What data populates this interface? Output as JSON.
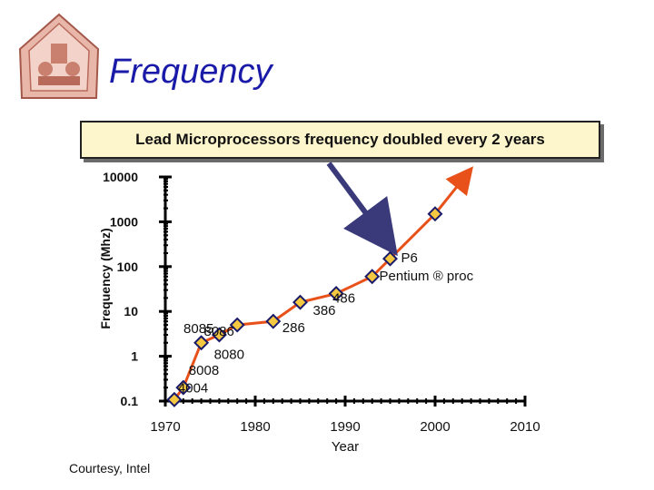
{
  "slide": {
    "title": "Frequency",
    "banner": "Lead Microprocessors frequency doubled every 2 years",
    "credit": "Courtesy, Intel"
  },
  "colors": {
    "title": "#1a1aa8",
    "banner_bg": "#fdf5cc",
    "line": "#e8511a",
    "marker": "#f5c842",
    "marker_border": "#1a1a6b",
    "arrow": "#3a3a7a"
  },
  "chart_data": {
    "type": "line",
    "xlabel": "Year",
    "ylabel": "Frequency (Mhz)",
    "xlim": [
      1970,
      2010
    ],
    "ylim": [
      0.1,
      10000
    ],
    "yscale": "log",
    "x_ticks": [
      "1970",
      "1980",
      "1990",
      "2000",
      "2010"
    ],
    "y_ticks": [
      "10000",
      "1000",
      "100",
      "10",
      "1",
      "0.1"
    ],
    "series": [
      {
        "x": [
          1971,
          1972,
          1974,
          1976,
          1978,
          1982,
          1985,
          1989,
          1993,
          1995,
          2000
        ],
        "values": [
          0.108,
          0.2,
          2,
          3,
          5,
          6,
          16,
          25,
          60,
          150,
          1500
        ]
      }
    ],
    "trend_extension": {
      "x": [
        2000,
        2003.3
      ],
      "values": [
        1500,
        10000
      ]
    },
    "annotations": [
      {
        "text": "4004",
        "x": 1971
      },
      {
        "text": "8008",
        "x": 1972
      },
      {
        "text": "8080",
        "x": 1974
      },
      {
        "text": "8085",
        "x": 1976
      },
      {
        "text": "8086",
        "x": 1978
      },
      {
        "text": "286",
        "x": 1982
      },
      {
        "text": "386",
        "x": 1985
      },
      {
        "text": "486",
        "x": 1989
      },
      {
        "text": "P6",
        "x": 1995
      },
      {
        "text": "Pentium ® proc",
        "x": 1995
      }
    ],
    "grid": false
  }
}
